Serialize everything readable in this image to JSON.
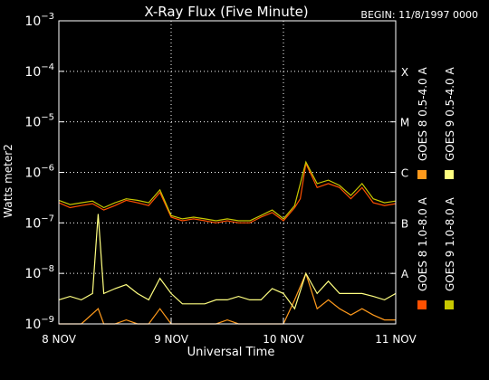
{
  "chart_data": {
    "type": "line",
    "title": "X-Ray Flux (Five Minute)",
    "begin_label": "BEGIN: 11/8/1997 0000",
    "xlabel": "Universal Time",
    "ylabel": "Watts meter2",
    "y_scale": "log",
    "ylim": [
      1e-09,
      0.001
    ],
    "xlim": [
      0,
      3
    ],
    "x_ticks": [
      {
        "x": 0,
        "label": "8 NOV"
      },
      {
        "x": 1,
        "label": "9 NOV"
      },
      {
        "x": 2,
        "label": "10 NOV"
      },
      {
        "x": 3,
        "label": "11 NOV"
      }
    ],
    "y_ticks": [
      {
        "exp": -3,
        "base": "10",
        "sup": "−3"
      },
      {
        "exp": -4,
        "base": "10",
        "sup": "−4"
      },
      {
        "exp": -5,
        "base": "10",
        "sup": "−5"
      },
      {
        "exp": -6,
        "base": "10",
        "sup": "−6"
      },
      {
        "exp": -7,
        "base": "10",
        "sup": "−7"
      },
      {
        "exp": -8,
        "base": "10",
        "sup": "−8"
      },
      {
        "exp": -9,
        "base": "10",
        "sup": "−9"
      }
    ],
    "flare_classes": [
      {
        "label": "X",
        "exp": -4
      },
      {
        "label": "M",
        "exp": -5
      },
      {
        "label": "C",
        "exp": -6
      },
      {
        "label": "B",
        "exp": -7
      },
      {
        "label": "A",
        "exp": -8
      }
    ],
    "grid": "dotted",
    "legend_position": "right-vertical",
    "series": [
      {
        "name": "GOES 8 1.0-8.0 A",
        "color": "#ff5000",
        "x": [
          0,
          0.1,
          0.2,
          0.3,
          0.4,
          0.5,
          0.6,
          0.7,
          0.8,
          0.9,
          1.0,
          1.1,
          1.2,
          1.3,
          1.4,
          1.5,
          1.6,
          1.7,
          1.8,
          1.9,
          2.0,
          2.1,
          2.15,
          2.2,
          2.3,
          2.4,
          2.5,
          2.6,
          2.7,
          2.8,
          2.9,
          3.0
        ],
        "y": [
          2.5e-07,
          2e-07,
          2.2e-07,
          2.4e-07,
          1.8e-07,
          2.2e-07,
          2.8e-07,
          2.5e-07,
          2.2e-07,
          4e-07,
          1.3e-07,
          1.1e-07,
          1.2e-07,
          1.1e-07,
          1e-07,
          1.1e-07,
          1e-07,
          1e-07,
          1.3e-07,
          1.6e-07,
          1.1e-07,
          2e-07,
          3e-07,
          1.5e-06,
          5e-07,
          6e-07,
          5e-07,
          3e-07,
          5e-07,
          2.5e-07,
          2.2e-07,
          2.4e-07
        ]
      },
      {
        "name": "GOES 8 0.5-4.0 A",
        "color": "#ff9a1c",
        "x": [
          0,
          0.2,
          0.35,
          0.4,
          0.5,
          0.6,
          0.7,
          0.8,
          0.9,
          1.0,
          1.1,
          1.2,
          1.3,
          1.4,
          1.5,
          1.6,
          1.7,
          1.8,
          1.9,
          2.0,
          2.1,
          2.2,
          2.3,
          2.4,
          2.5,
          2.6,
          2.7,
          2.8,
          2.9,
          3.0
        ],
        "y": [
          1e-09,
          1e-09,
          2e-09,
          1e-09,
          1e-09,
          1.2e-09,
          1e-09,
          1e-09,
          2e-09,
          1e-09,
          1e-09,
          1e-09,
          1e-09,
          1e-09,
          1.2e-09,
          1e-09,
          1e-09,
          1e-09,
          1e-09,
          1e-09,
          3e-09,
          1e-08,
          2e-09,
          3e-09,
          2e-09,
          1.5e-09,
          2e-09,
          1.5e-09,
          1.2e-09,
          1.2e-09
        ]
      },
      {
        "name": "GOES 9 0.5-4.0 A",
        "color": "#ffff80",
        "x": [
          0,
          0.1,
          0.2,
          0.3,
          0.35,
          0.4,
          0.5,
          0.6,
          0.7,
          0.8,
          0.9,
          1.0,
          1.1,
          1.2,
          1.3,
          1.4,
          1.5,
          1.6,
          1.7,
          1.8,
          1.9,
          2.0,
          2.1,
          2.2,
          2.3,
          2.4,
          2.5,
          2.6,
          2.7,
          2.8,
          2.9,
          3.0
        ],
        "y": [
          3e-09,
          3.5e-09,
          3e-09,
          4e-09,
          1.5e-07,
          4e-09,
          5e-09,
          6e-09,
          4e-09,
          3e-09,
          8e-09,
          4e-09,
          2.5e-09,
          2.5e-09,
          2.5e-09,
          3e-09,
          3e-09,
          3.5e-09,
          3e-09,
          3e-09,
          5e-09,
          4e-09,
          2e-09,
          1e-08,
          4e-09,
          7e-09,
          4e-09,
          4e-09,
          4e-09,
          3.5e-09,
          3e-09,
          4e-09
        ]
      },
      {
        "name": "GOES 9 1.0-8.0 A",
        "color": "#c8c800",
        "x": [
          0,
          0.1,
          0.2,
          0.3,
          0.4,
          0.5,
          0.6,
          0.7,
          0.8,
          0.9,
          1.0,
          1.1,
          1.2,
          1.3,
          1.4,
          1.5,
          1.6,
          1.7,
          1.8,
          1.9,
          2.0,
          2.1,
          2.2,
          2.3,
          2.4,
          2.5,
          2.6,
          2.7,
          2.8,
          2.9,
          3.0
        ],
        "y": [
          2.8e-07,
          2.3e-07,
          2.5e-07,
          2.7e-07,
          2e-07,
          2.5e-07,
          3e-07,
          2.8e-07,
          2.5e-07,
          4.5e-07,
          1.4e-07,
          1.2e-07,
          1.3e-07,
          1.2e-07,
          1.1e-07,
          1.2e-07,
          1.1e-07,
          1.1e-07,
          1.4e-07,
          1.8e-07,
          1.2e-07,
          2.2e-07,
          1.6e-06,
          6e-07,
          7e-07,
          5.5e-07,
          3.5e-07,
          6e-07,
          3e-07,
          2.5e-07,
          2.7e-07
        ]
      }
    ]
  }
}
